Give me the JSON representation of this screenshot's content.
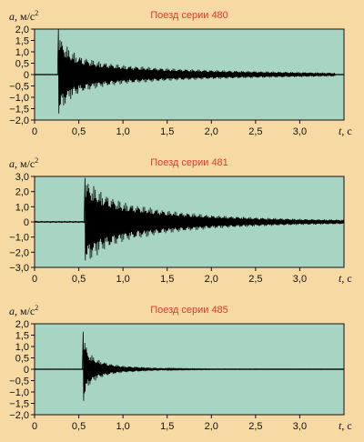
{
  "colors": {
    "background": "#f6d9a3",
    "plot_area": "#a8d5c3",
    "signal": "#000000",
    "title": "#e03a2a"
  },
  "chart_data": [
    {
      "type": "line",
      "title": "Поезд серии 480",
      "ylabel_var": "a",
      "ylabel_unit": ", м/c",
      "ylabel_sup": "2",
      "xlabel_var": "t",
      "xlabel_unit": ", c",
      "xlim": [
        0,
        3.5
      ],
      "ylim": [
        -2.0,
        2.0
      ],
      "x_ticks": [
        0,
        0.5,
        1.0,
        1.5,
        2.0,
        2.5,
        3.0
      ],
      "x_tick_labels": [
        "0",
        "0,5",
        "1,0",
        "1,5",
        "2,0",
        "2,5",
        "3,0"
      ],
      "y_ticks": [
        2.0,
        1.5,
        1.0,
        0.5,
        0,
        -0.5,
        -1.0,
        -1.5,
        -2.0
      ],
      "y_tick_labels": [
        "2,0",
        "1,5",
        "1,0",
        "0,5",
        "0",
        "−0,5",
        "−1,0",
        "−1,5",
        "−2,0"
      ],
      "grid": false,
      "series": [
        {
          "impact_x": 0.27,
          "envelope": [
            {
              "x": 0.27,
              "y": 2.0
            },
            {
              "x": 0.3,
              "y": 1.6
            },
            {
              "x": 0.4,
              "y": 1.1
            },
            {
              "x": 0.5,
              "y": 0.85
            },
            {
              "x": 0.7,
              "y": 0.6
            },
            {
              "x": 1.0,
              "y": 0.42
            },
            {
              "x": 1.5,
              "y": 0.28
            },
            {
              "x": 2.0,
              "y": 0.2
            },
            {
              "x": 2.5,
              "y": 0.15
            },
            {
              "x": 3.0,
              "y": 0.11
            },
            {
              "x": 3.4,
              "y": 0.08
            }
          ],
          "pre_noise": 0.01,
          "end_x": 3.4
        }
      ]
    },
    {
      "type": "line",
      "title": "Поезд серии 481",
      "ylabel_var": "a",
      "ylabel_unit": ", м/c",
      "ylabel_sup": "2",
      "xlabel_var": "t",
      "xlabel_unit": ", c",
      "xlim": [
        0,
        3.5
      ],
      "ylim": [
        -3.0,
        3.0
      ],
      "x_ticks": [
        0,
        0.5,
        1.0,
        1.5,
        2.0,
        2.5,
        3.0
      ],
      "x_tick_labels": [
        "0",
        "0,5",
        "1,0",
        "1,5",
        "2,0",
        "2,5",
        "3,0"
      ],
      "y_ticks": [
        3.0,
        2.0,
        1.0,
        0,
        -1.0,
        -2.0,
        -3.0
      ],
      "y_tick_labels": [
        "3,0",
        "2,0",
        "1,0",
        "0",
        "−1,0",
        "−2,0",
        "−3,0"
      ],
      "grid": false,
      "series": [
        {
          "impact_x": 0.57,
          "envelope": [
            {
              "x": 0.57,
              "y": 2.9
            },
            {
              "x": 0.65,
              "y": 2.5
            },
            {
              "x": 0.75,
              "y": 2.0
            },
            {
              "x": 1.0,
              "y": 1.3
            },
            {
              "x": 1.5,
              "y": 0.75
            },
            {
              "x": 2.0,
              "y": 0.45
            },
            {
              "x": 2.5,
              "y": 0.3
            },
            {
              "x": 3.0,
              "y": 0.2
            },
            {
              "x": 3.5,
              "y": 0.15
            }
          ],
          "pre_noise": 0.05,
          "end_x": 3.5
        }
      ]
    },
    {
      "type": "line",
      "title": "Поезд серии 485",
      "ylabel_var": "a",
      "ylabel_unit": ", м/c",
      "ylabel_sup": "2",
      "xlabel_var": "t",
      "xlabel_unit": ", c",
      "xlim": [
        0,
        3.5
      ],
      "ylim": [
        -2.0,
        2.0
      ],
      "x_ticks": [
        0,
        0.5,
        1.0,
        1.5,
        2.0,
        2.5,
        3.0
      ],
      "x_tick_labels": [
        "0",
        "0,5",
        "1,0",
        "1,5",
        "2,0",
        "2,5",
        "3,0"
      ],
      "y_ticks": [
        2.0,
        1.5,
        1.0,
        0.5,
        0,
        -0.5,
        -1.0,
        -1.5,
        -2.0
      ],
      "y_tick_labels": [
        "2,0",
        "1,5",
        "1,0",
        "0,5",
        "0",
        "−0,5",
        "−1,0",
        "−1,5",
        "−2,0"
      ],
      "grid": false,
      "series": [
        {
          "impact_x": 0.55,
          "envelope": [
            {
              "x": 0.55,
              "y": 1.65
            },
            {
              "x": 0.6,
              "y": 0.8
            },
            {
              "x": 0.7,
              "y": 0.45
            },
            {
              "x": 0.85,
              "y": 0.25
            },
            {
              "x": 1.0,
              "y": 0.15
            },
            {
              "x": 1.3,
              "y": 0.08
            },
            {
              "x": 1.6,
              "y": 0.03
            },
            {
              "x": 2.0,
              "y": 0.015
            },
            {
              "x": 3.5,
              "y": 0.01
            }
          ],
          "pre_noise": 0.01,
          "end_x": 3.5
        }
      ]
    }
  ]
}
